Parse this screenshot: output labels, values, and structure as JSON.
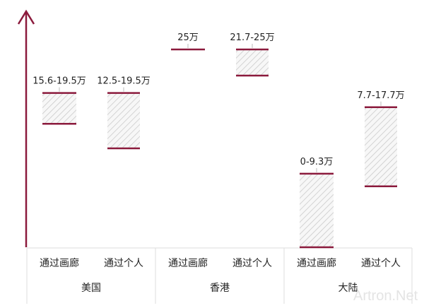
{
  "chart_data": {
    "type": "range-bar",
    "unit": "万",
    "ylim": [
      0,
      25
    ],
    "grid": false,
    "groups": [
      {
        "name": "美国",
        "items": [
          {
            "category": "通过画廊",
            "low": 15.6,
            "high": 19.5,
            "label": "15.6-19.5万"
          },
          {
            "category": "通过个人",
            "low": 12.5,
            "high": 19.5,
            "label": "12.5-19.5万"
          }
        ]
      },
      {
        "name": "香港",
        "items": [
          {
            "category": "通过画廊",
            "low": 25,
            "high": 25,
            "label": "25万"
          },
          {
            "category": "通过个人",
            "low": 21.7,
            "high": 25,
            "label": "21.7-25万"
          }
        ]
      },
      {
        "name": "大陆",
        "items": [
          {
            "category": "通过画廊",
            "low": 0,
            "high": 9.3,
            "label": "0-9.3万"
          },
          {
            "category": "通过个人",
            "low": 7.7,
            "high": 17.7,
            "label": "7.7-17.7万"
          }
        ]
      }
    ],
    "colors": {
      "axis": "#8b1a3c",
      "bar_edge": "#8b1a3c",
      "hatch": "#c8c8c8",
      "divider": "#dddddd"
    }
  },
  "watermark": "Artron.Net"
}
